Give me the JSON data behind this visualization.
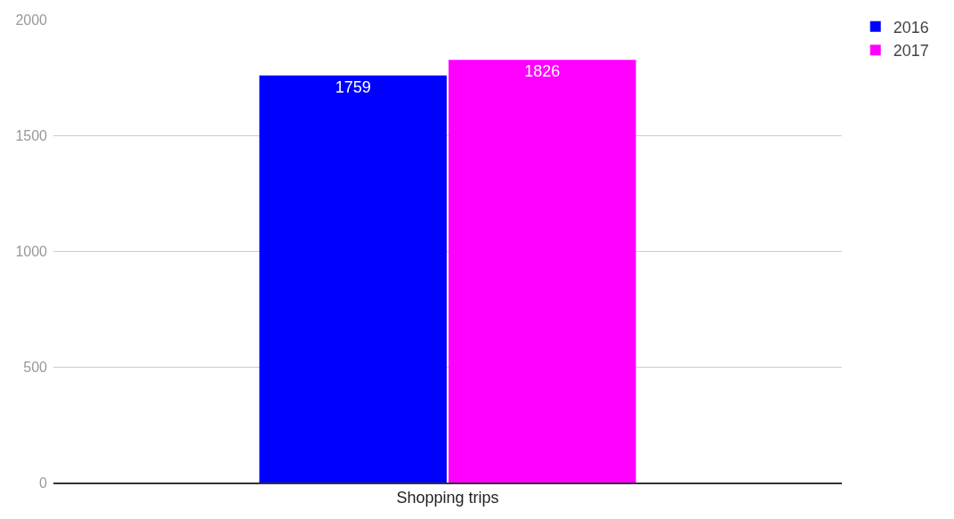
{
  "chart_data": {
    "type": "bar",
    "categories": [
      "Shopping trips"
    ],
    "series": [
      {
        "name": "2016",
        "color": "#0000ff",
        "values": [
          1759
        ]
      },
      {
        "name": "2017",
        "color": "#ff00ff",
        "values": [
          1826
        ]
      }
    ],
    "ylim": [
      0,
      2000
    ],
    "yticks": [
      0,
      500,
      1000,
      1500,
      2000
    ],
    "grid": "y",
    "legend": "top right",
    "data_labels": true
  }
}
